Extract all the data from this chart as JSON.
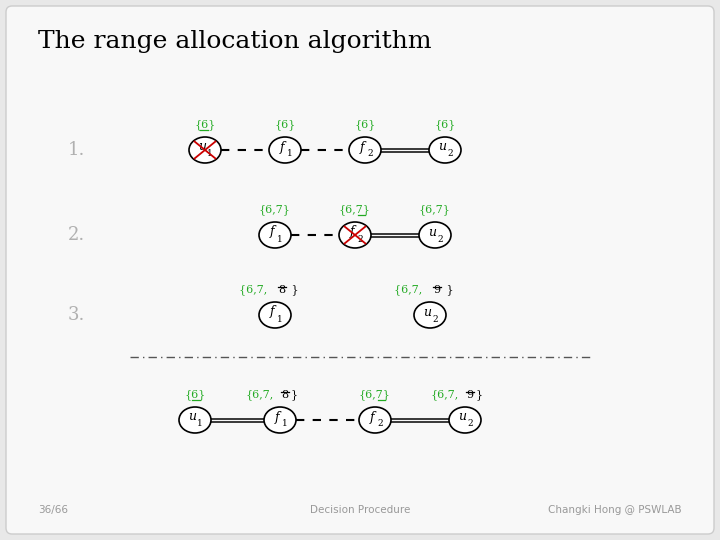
{
  "title": "The range allocation algorithm",
  "bg_color": "#e8e8e8",
  "slide_bg": "#f8f8f8",
  "title_color": "#000000",
  "step_label_color": "#b0b0b0",
  "node_edge_color": "#000000",
  "node_fill_color": "#ffffff",
  "cross_color": "#cc0000",
  "green_color": "#22aa22",
  "black_color": "#000000",
  "separator_color": "#555555",
  "footer_color": "#999999",
  "step1_label": "1.",
  "step2_label": "2.",
  "step3_label": "3.",
  "footer_left": "36/66",
  "footer_center": "Decision Procedure",
  "footer_right": "Changki Hong @ PSWLAB"
}
